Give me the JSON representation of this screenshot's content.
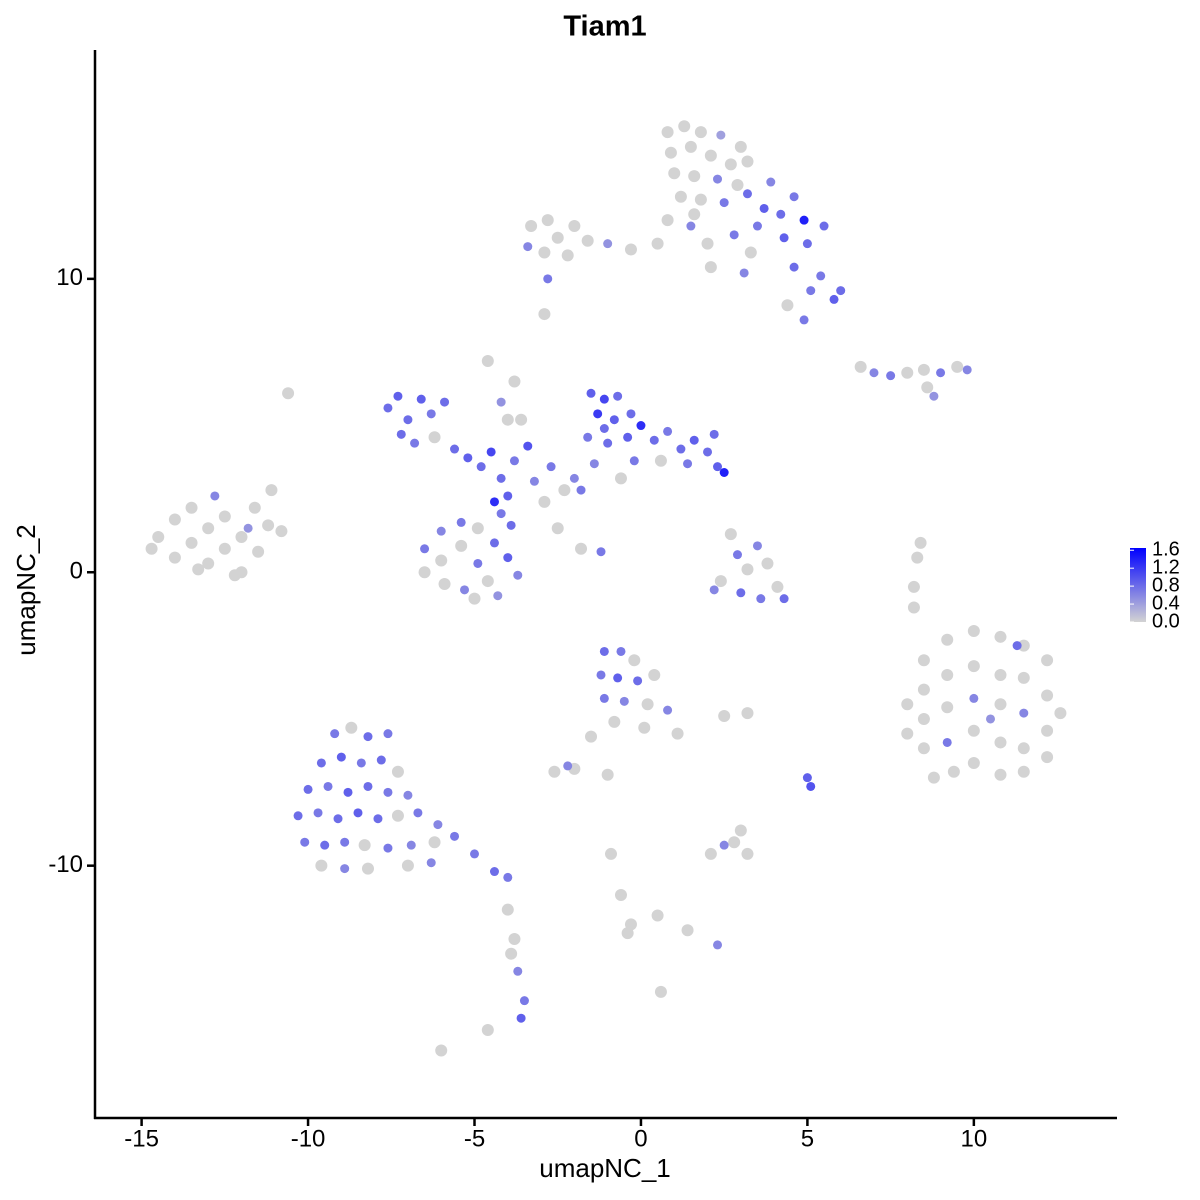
{
  "chart_data": {
    "type": "scatter",
    "title": "Tiam1",
    "x_label": "umapNC_1",
    "y_label": "umapNC_2",
    "xlim": [
      -16.4,
      14.3
    ],
    "ylim": [
      -18.6,
      17.8
    ],
    "xticks": [
      -15,
      -10,
      -5,
      0,
      5,
      10
    ],
    "yticks": [
      -10,
      0,
      10
    ],
    "low_color": "#d3d3d3",
    "high_color": "#0000ff",
    "colorbar_lim": [
      0,
      1.65
    ],
    "colorbar_ticks": [
      {
        "value": 0,
        "label": "0.0"
      },
      0.4,
      0.8,
      1.2,
      1.6
    ],
    "points": [
      [
        -14.5,
        1.2,
        0
      ],
      [
        -14,
        0.5,
        0
      ],
      [
        -14,
        1.8,
        0
      ],
      [
        -13.5,
        1.0,
        0
      ],
      [
        -13.5,
        2.2,
        0
      ],
      [
        -13,
        0.3,
        0
      ],
      [
        -13,
        1.5,
        0
      ],
      [
        -12.8,
        2.6,
        0.6
      ],
      [
        -12.5,
        0.8,
        0
      ],
      [
        -12.5,
        1.9,
        0
      ],
      [
        -12,
        1.2,
        0
      ],
      [
        -12,
        0,
        0
      ],
      [
        -11.6,
        2.2,
        0
      ],
      [
        -11.5,
        0.7,
        0
      ],
      [
        -11.2,
        1.6,
        0
      ],
      [
        -10.8,
        1.4,
        0
      ],
      [
        -12.2,
        -0.1,
        0
      ],
      [
        -13.3,
        0.1,
        0
      ],
      [
        -14.7,
        0.8,
        0
      ],
      [
        -11.8,
        1.5,
        0.5
      ],
      [
        -11.1,
        2.8,
        0
      ],
      [
        -3.3,
        11.8,
        0
      ],
      [
        -2.8,
        12,
        0
      ],
      [
        -2.5,
        11.4,
        0
      ],
      [
        -2,
        11.8,
        0
      ],
      [
        -1.6,
        11.3,
        0
      ],
      [
        -2.9,
        10.9,
        0
      ],
      [
        -3.4,
        11.1,
        0.6
      ],
      [
        -2.2,
        10.8,
        0
      ],
      [
        -1,
        11.2,
        0.5
      ],
      [
        -0.3,
        11,
        0
      ],
      [
        0.5,
        11.2,
        0
      ],
      [
        0.8,
        15,
        0
      ],
      [
        1.3,
        15.2,
        0
      ],
      [
        1.8,
        15,
        0
      ],
      [
        2.4,
        14.9,
        0.4
      ],
      [
        3,
        14.5,
        0
      ],
      [
        0.9,
        14.3,
        0
      ],
      [
        1.5,
        14.5,
        0
      ],
      [
        2.1,
        14.2,
        0
      ],
      [
        2.7,
        13.9,
        0
      ],
      [
        3.2,
        14,
        0
      ],
      [
        1,
        13.6,
        0
      ],
      [
        1.6,
        13.5,
        0
      ],
      [
        2.3,
        13.4,
        0.6
      ],
      [
        2.9,
        13.2,
        0
      ],
      [
        1.2,
        12.8,
        0
      ],
      [
        1.8,
        12.7,
        0
      ],
      [
        2.5,
        12.6,
        0.7
      ],
      [
        3.2,
        12.9,
        0.8
      ],
      [
        3.7,
        12.4,
        0.9
      ],
      [
        4.2,
        12.2,
        0.8
      ],
      [
        4.9,
        12,
        1.4
      ],
      [
        5.5,
        11.8,
        0.8
      ],
      [
        3.5,
        11.8,
        0.7
      ],
      [
        4.3,
        11.4,
        0.9
      ],
      [
        5,
        11.2,
        0.8
      ],
      [
        1.5,
        11.8,
        0.6
      ],
      [
        2,
        11.2,
        0
      ],
      [
        2.8,
        11.5,
        0.7
      ],
      [
        3.3,
        10.9,
        0
      ],
      [
        4.6,
        10.4,
        0.8
      ],
      [
        5.4,
        10.1,
        0.7
      ],
      [
        6,
        9.6,
        0.8
      ],
      [
        5.8,
        9.3,
        0.9
      ],
      [
        5.1,
        9.6,
        0.7
      ],
      [
        4.4,
        9.1,
        0
      ],
      [
        4.9,
        8.6,
        0.7
      ],
      [
        3.1,
        10.2,
        0.6
      ],
      [
        2.1,
        10.4,
        0
      ],
      [
        1.6,
        12.2,
        0
      ],
      [
        0.8,
        12,
        0
      ],
      [
        3.9,
        13.3,
        0.6
      ],
      [
        4.6,
        12.8,
        0.7
      ],
      [
        -7.6,
        5.6,
        0.8
      ],
      [
        -7.3,
        6,
        0.9
      ],
      [
        -7,
        5.2,
        0.8
      ],
      [
        -6.6,
        5.9,
        0.9
      ],
      [
        -6.3,
        5.4,
        0.7
      ],
      [
        -5.9,
        5.8,
        0.8
      ],
      [
        -7.2,
        4.7,
        0.8
      ],
      [
        -6.8,
        4.4,
        0.7
      ],
      [
        -6.2,
        4.6,
        0
      ],
      [
        -5.6,
        4.2,
        0.8
      ],
      [
        -5.2,
        3.9,
        0.9
      ],
      [
        -4.8,
        3.6,
        0.8
      ],
      [
        -4.5,
        4.1,
        1.1
      ],
      [
        -4.2,
        3.2,
        0.8
      ],
      [
        -4,
        2.6,
        0.9
      ],
      [
        -4.4,
        2.4,
        1.3
      ],
      [
        -3.8,
        3.8,
        0.7
      ],
      [
        -3.4,
        4.3,
        1.0
      ],
      [
        -4.6,
        7.2,
        0
      ],
      [
        -4.2,
        5.8,
        0.5
      ],
      [
        -3.6,
        5.2,
        0
      ],
      [
        -3.2,
        3.1,
        0.6
      ],
      [
        -2.7,
        3.6,
        0.7
      ],
      [
        -2.3,
        2.8,
        0
      ],
      [
        -2,
        3.2,
        0.6
      ],
      [
        -1.5,
        6.1,
        0.9
      ],
      [
        -1.1,
        5.9,
        1.1
      ],
      [
        -0.7,
        6,
        0.8
      ],
      [
        -1.3,
        5.4,
        1.2
      ],
      [
        -0.8,
        5.2,
        0.9
      ],
      [
        -0.3,
        5.4,
        0.8
      ],
      [
        -1.6,
        4.6,
        0.7
      ],
      [
        -1,
        4.4,
        0.8
      ],
      [
        -0.4,
        4.6,
        0.9
      ],
      [
        0,
        5,
        1.3
      ],
      [
        0.4,
        4.5,
        0.8
      ],
      [
        0.8,
        4.8,
        0.7
      ],
      [
        1.2,
        4.2,
        0.8
      ],
      [
        1.6,
        4.5,
        0.9
      ],
      [
        2,
        4.1,
        0.8
      ],
      [
        2.3,
        3.6,
        0.9
      ],
      [
        2.5,
        3.4,
        1.4
      ],
      [
        1.4,
        3.7,
        0.7
      ],
      [
        0.6,
        3.8,
        0
      ],
      [
        -0.2,
        3.8,
        0.7
      ],
      [
        -1.4,
        3.7,
        0.6
      ],
      [
        -0.6,
        3.2,
        0
      ],
      [
        -1.8,
        2.8,
        0.7
      ],
      [
        2.2,
        4.7,
        0.8
      ],
      [
        -1.1,
        4.9,
        0.8
      ],
      [
        -6.5,
        0.8,
        0.7
      ],
      [
        -6.5,
        0,
        0
      ],
      [
        -6,
        1.4,
        0.6
      ],
      [
        -6,
        0.4,
        0
      ],
      [
        -5.9,
        -0.4,
        0
      ],
      [
        -5.4,
        1.7,
        0.7
      ],
      [
        -5.4,
        0.9,
        0
      ],
      [
        -5.3,
        -0.6,
        0.6
      ],
      [
        -4.9,
        1.5,
        0
      ],
      [
        -4.9,
        0.3,
        0.7
      ],
      [
        -4.6,
        -0.3,
        0
      ],
      [
        -4.4,
        1.0,
        0.8
      ],
      [
        -4,
        0.5,
        0.9
      ],
      [
        -3.9,
        1.6,
        0.8
      ],
      [
        -3.7,
        -0.1,
        0.6
      ],
      [
        -4.3,
        -0.8,
        0.5
      ],
      [
        -5,
        -0.9,
        0
      ],
      [
        -4.2,
        2,
        0.7
      ],
      [
        -2.5,
        1.5,
        0
      ],
      [
        -1.8,
        0.8,
        0
      ],
      [
        -1.2,
        0.7,
        0.7
      ],
      [
        -3.8,
        6.5,
        0
      ],
      [
        -4,
        5.2,
        0
      ],
      [
        -2.9,
        2.4,
        0
      ],
      [
        2.7,
        1.3,
        0
      ],
      [
        2.9,
        0.6,
        0.7
      ],
      [
        3.2,
        0.1,
        0
      ],
      [
        3.5,
        0.9,
        0.6
      ],
      [
        2.4,
        -0.3,
        0
      ],
      [
        3,
        -0.7,
        0.8
      ],
      [
        3.6,
        -0.9,
        0.7
      ],
      [
        4.1,
        -0.5,
        0
      ],
      [
        4.3,
        -0.9,
        0.8
      ],
      [
        2.2,
        -0.6,
        0.6
      ],
      [
        3.8,
        0.3,
        0
      ],
      [
        6.6,
        7,
        0
      ],
      [
        7,
        6.8,
        0.6
      ],
      [
        7.5,
        6.7,
        0.7
      ],
      [
        8,
        6.8,
        0
      ],
      [
        8.5,
        6.9,
        0
      ],
      [
        9,
        6.8,
        0.7
      ],
      [
        9.5,
        7,
        0
      ],
      [
        9.8,
        6.9,
        0.6
      ],
      [
        8.6,
        6.3,
        0
      ],
      [
        8.8,
        6,
        0.5
      ],
      [
        8.2,
        -0.5,
        0
      ],
      [
        8.3,
        0.5,
        0
      ],
      [
        8.2,
        -1.2,
        0
      ],
      [
        8.4,
        1.0,
        0
      ],
      [
        8,
        -4.5,
        0
      ],
      [
        8,
        -5.5,
        0
      ],
      [
        8.5,
        -3,
        0
      ],
      [
        8.5,
        -4,
        0
      ],
      [
        8.5,
        -5,
        0
      ],
      [
        8.5,
        -6,
        0
      ],
      [
        8.8,
        -7,
        0
      ],
      [
        9.2,
        -2.3,
        0
      ],
      [
        9.2,
        -3.5,
        0
      ],
      [
        9.2,
        -4.6,
        0
      ],
      [
        9.2,
        -5.8,
        0.7
      ],
      [
        9.4,
        -6.8,
        0
      ],
      [
        10,
        -2,
        0
      ],
      [
        10,
        -3.2,
        0
      ],
      [
        10,
        -4.3,
        0.6
      ],
      [
        10,
        -5.4,
        0
      ],
      [
        10,
        -6.5,
        0
      ],
      [
        10.5,
        -5,
        0.5
      ],
      [
        10.8,
        -2.2,
        0
      ],
      [
        10.8,
        -3.5,
        0
      ],
      [
        10.8,
        -4.5,
        0
      ],
      [
        10.8,
        -5.8,
        0
      ],
      [
        10.8,
        -6.9,
        0
      ],
      [
        11.5,
        -2.5,
        0
      ],
      [
        11.5,
        -3.6,
        0
      ],
      [
        11.5,
        -4.8,
        0.6
      ],
      [
        11.5,
        -6,
        0
      ],
      [
        11.5,
        -6.8,
        0
      ],
      [
        12.2,
        -3,
        0
      ],
      [
        12.2,
        -4.2,
        0
      ],
      [
        12.2,
        -5.4,
        0
      ],
      [
        12.2,
        -6.3,
        0
      ],
      [
        12.6,
        -4.8,
        0
      ],
      [
        11.3,
        -2.5,
        0.8
      ],
      [
        -9.2,
        -5.5,
        0.7
      ],
      [
        -8.7,
        -5.3,
        0
      ],
      [
        -8.2,
        -5.6,
        0.8
      ],
      [
        -7.6,
        -5.5,
        0.7
      ],
      [
        -9.6,
        -6.5,
        0.8
      ],
      [
        -9,
        -6.3,
        0.9
      ],
      [
        -8.4,
        -6.5,
        0.7
      ],
      [
        -7.8,
        -6.4,
        0.8
      ],
      [
        -7.3,
        -6.8,
        0
      ],
      [
        -10,
        -7.4,
        0.8
      ],
      [
        -9.4,
        -7.3,
        0.7
      ],
      [
        -8.8,
        -7.5,
        0.9
      ],
      [
        -8.2,
        -7.3,
        0.8
      ],
      [
        -7.6,
        -7.5,
        0.7
      ],
      [
        -7,
        -7.6,
        0.6
      ],
      [
        -10.3,
        -8.3,
        0.8
      ],
      [
        -9.7,
        -8.2,
        0.7
      ],
      [
        -9.1,
        -8.4,
        0.8
      ],
      [
        -8.5,
        -8.2,
        0.9
      ],
      [
        -7.9,
        -8.4,
        0.8
      ],
      [
        -7.3,
        -8.3,
        0
      ],
      [
        -6.7,
        -8.2,
        0.7
      ],
      [
        -6.1,
        -8.6,
        0.6
      ],
      [
        -10.1,
        -9.2,
        0.7
      ],
      [
        -9.5,
        -9.3,
        0.8
      ],
      [
        -8.9,
        -9.2,
        0.7
      ],
      [
        -8.3,
        -9.3,
        0
      ],
      [
        -7.6,
        -9.4,
        0.7
      ],
      [
        -6.9,
        -9.3,
        0.6
      ],
      [
        -6.2,
        -9.2,
        0
      ],
      [
        -5.6,
        -9,
        0.7
      ],
      [
        -5,
        -9.6,
        0.7
      ],
      [
        -4.4,
        -10.2,
        0.8
      ],
      [
        -4,
        -10.4,
        0.7
      ],
      [
        -9.6,
        -10,
        0
      ],
      [
        -8.9,
        -10.1,
        0.6
      ],
      [
        -8.2,
        -10.1,
        0
      ],
      [
        -7,
        -10,
        0
      ],
      [
        -6.3,
        -9.9,
        0.6
      ],
      [
        -4,
        -11.5,
        0
      ],
      [
        -3.8,
        -12.5,
        0
      ],
      [
        -3.7,
        -13.6,
        0.6
      ],
      [
        -3.5,
        -14.6,
        0.7
      ],
      [
        -3.6,
        -15.2,
        0.9
      ],
      [
        -3.9,
        -13,
        0
      ],
      [
        -1.1,
        -2.7,
        0.8
      ],
      [
        -0.6,
        -2.7,
        0.7
      ],
      [
        -0.2,
        -3,
        0
      ],
      [
        -1.2,
        -3.5,
        0.7
      ],
      [
        -0.7,
        -3.6,
        0.9
      ],
      [
        -0.1,
        -3.7,
        0.8
      ],
      [
        0.4,
        -3.5,
        0
      ],
      [
        -1.1,
        -4.3,
        0.7
      ],
      [
        -0.5,
        -4.4,
        0.6
      ],
      [
        0.2,
        -4.5,
        0
      ],
      [
        0.8,
        -4.7,
        0.6
      ],
      [
        -0.8,
        -5.1,
        0
      ],
      [
        0.1,
        -5.3,
        0
      ],
      [
        1.1,
        -5.5,
        0
      ],
      [
        -1.5,
        -5.6,
        0
      ],
      [
        -2,
        -6.7,
        0
      ],
      [
        -2.6,
        -6.8,
        0
      ],
      [
        -2.2,
        -6.6,
        0.6
      ],
      [
        -1,
        -6.9,
        0
      ],
      [
        2.5,
        -4.9,
        0
      ],
      [
        3.2,
        -4.8,
        0
      ],
      [
        5.1,
        -7.3,
        1.0
      ],
      [
        5,
        -7.0,
        0.9
      ],
      [
        3,
        -8.8,
        0
      ],
      [
        2.5,
        -9.3,
        0.6
      ],
      [
        2.1,
        -9.6,
        0
      ],
      [
        3.2,
        -9.6,
        0
      ],
      [
        2.8,
        -9.2,
        0
      ],
      [
        -0.4,
        -12.3,
        0
      ],
      [
        -0.6,
        -11,
        0
      ],
      [
        -0.3,
        -12,
        0
      ],
      [
        0.5,
        -11.7,
        0
      ],
      [
        1.4,
        -12.2,
        0
      ],
      [
        2.3,
        -12.7,
        0.6
      ],
      [
        -0.9,
        -9.6,
        0
      ],
      [
        0.6,
        -14.3,
        0
      ],
      [
        -6,
        -16.3,
        0
      ],
      [
        -4.6,
        -15.6,
        0
      ],
      [
        -2.8,
        10,
        0.7
      ],
      [
        -2.9,
        8.8,
        0
      ],
      [
        -10.6,
        6.1,
        0
      ]
    ]
  }
}
